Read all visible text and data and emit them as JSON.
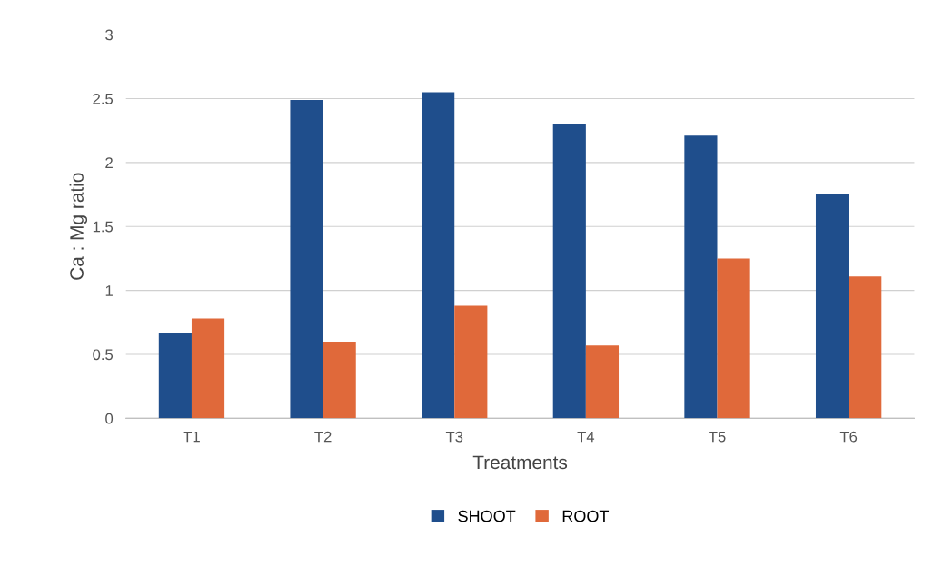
{
  "chart_data": {
    "type": "bar",
    "xlabel": "Treatments",
    "ylabel": "Ca : Mg ratio",
    "categories": [
      "T1",
      "T2",
      "T3",
      "T4",
      "T5",
      "T6"
    ],
    "series": [
      {
        "name": "SHOOT",
        "color": "#1f4e8c",
        "values": [
          0.67,
          2.49,
          2.55,
          2.3,
          2.21,
          1.75
        ]
      },
      {
        "name": "ROOT",
        "color": "#e0693a",
        "values": [
          0.78,
          0.6,
          0.88,
          0.57,
          1.25,
          1.11
        ]
      }
    ],
    "ylim": [
      0,
      3
    ],
    "yticks": [
      0,
      0.5,
      1,
      1.5,
      2,
      2.5,
      3
    ],
    "grid": "y",
    "legend": "bottom"
  }
}
